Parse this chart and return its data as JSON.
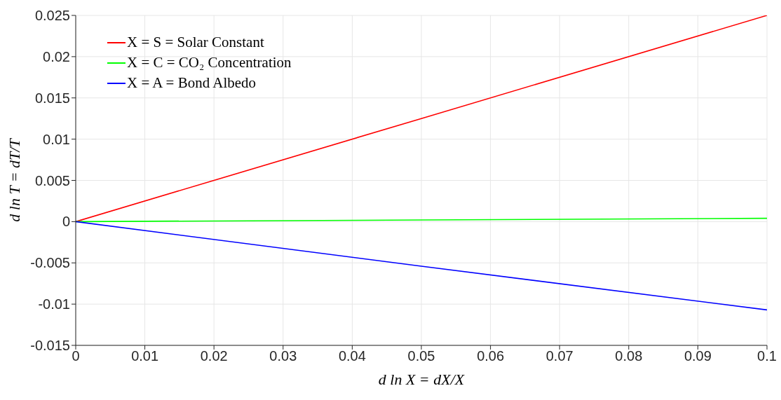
{
  "chart_data": {
    "type": "line",
    "xlabel": "d ln X = dX/X",
    "ylabel": "d ln T = dT/T",
    "x": [
      0,
      0.05,
      0.1
    ],
    "series": [
      {
        "name": "X = S = Solar Constant",
        "color": "#ff0000",
        "values": [
          0,
          0.0125,
          0.025
        ]
      },
      {
        "name": "X = C = CO₂ Concentration",
        "color": "#00ff00",
        "values": [
          0,
          0.0002,
          0.0004
        ]
      },
      {
        "name": "X = A = Bond Albedo",
        "color": "#0000ff",
        "values": [
          0,
          -0.0054,
          -0.0107
        ]
      }
    ],
    "xlim": [
      0,
      0.1
    ],
    "xticks": [
      0,
      0.01,
      0.02,
      0.03,
      0.04,
      0.05,
      0.06,
      0.07,
      0.08,
      0.09,
      0.1
    ],
    "ylim": [
      -0.015,
      0.025
    ],
    "yticks": [
      -0.015,
      -0.01,
      -0.005,
      0,
      0.005,
      0.01,
      0.015,
      0.02,
      0.025
    ],
    "grid": true,
    "legend": "top left",
    "marker": "none",
    "line_style": "solid"
  }
}
